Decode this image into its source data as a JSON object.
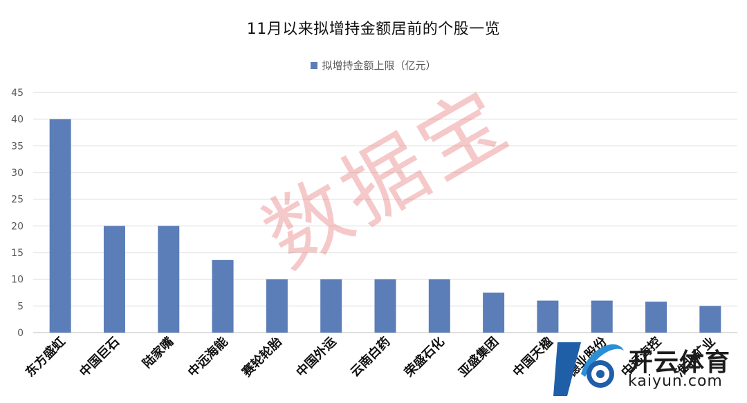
{
  "chart_data": {
    "type": "bar",
    "title": "11月以来拟增持金额居前的个股一览",
    "legend": [
      "拟增持金额上限（亿元）"
    ],
    "legend_position": "top",
    "grid": true,
    "ylim": [
      0,
      45
    ],
    "yticks": [
      0,
      5,
      10,
      15,
      20,
      25,
      30,
      35,
      40,
      45
    ],
    "categories": [
      "东方盛虹",
      "中国巨石",
      "陆家嘴",
      "中远海能",
      "赛轮轮胎",
      "中国外运",
      "云南白药",
      "荣盛石化",
      "亚盛集团",
      "中国天楹",
      "德业股份",
      "中远海控",
      "淮北矿业"
    ],
    "series": [
      {
        "name": "拟增持金额上限（亿元）",
        "values": [
          40,
          20,
          20,
          13.6,
          10,
          10,
          10,
          10,
          7.5,
          6,
          6,
          5.8,
          5
        ]
      }
    ],
    "colors": {
      "bar": "#5b7db8",
      "grid": "#d9d9d9",
      "tick_text": "#595959",
      "category_text": "#111111"
    }
  },
  "watermark": {
    "text": "数据宝"
  },
  "logo": {
    "brand": "开云体育",
    "site": "kaiyun.com"
  }
}
